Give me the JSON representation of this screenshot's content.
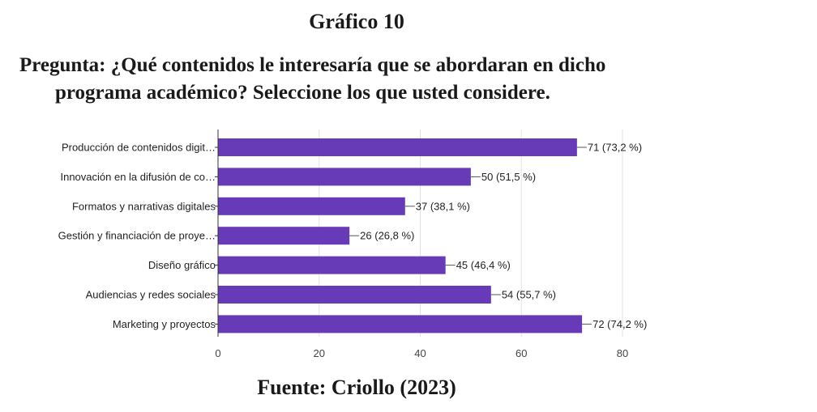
{
  "figure_label": "Gráfico 10",
  "question": {
    "line1": "Pregunta: ¿Qué contenidos le interesaría que se abordaran en dicho",
    "line2": "programa académico? Seleccione los que usted considere."
  },
  "source": "Fuente: Criollo (2023)",
  "chart_data": {
    "type": "bar",
    "orientation": "horizontal",
    "categories": [
      "Producción de contenidos digit…",
      "Innovación en la difusión de co…",
      "Formatos y narrativas digitales",
      "Gestión y financiación de proye…",
      "Diseño gráfico",
      "Audiencias y redes sociales",
      "Marketing y proyectos"
    ],
    "values": [
      71,
      50,
      37,
      26,
      45,
      54,
      72
    ],
    "data_labels": [
      "71 (73,2 %)",
      "50 (51,5 %)",
      "37 (38,1 %)",
      "26 (26,8 %)",
      "45 (46,4 %)",
      "54 (55,7 %)",
      "72 (74,2 %)"
    ],
    "xlim": [
      0,
      80
    ],
    "x_ticks": [
      0,
      20,
      40,
      60,
      80
    ],
    "grid": true,
    "bar_color": "#673ab7"
  }
}
